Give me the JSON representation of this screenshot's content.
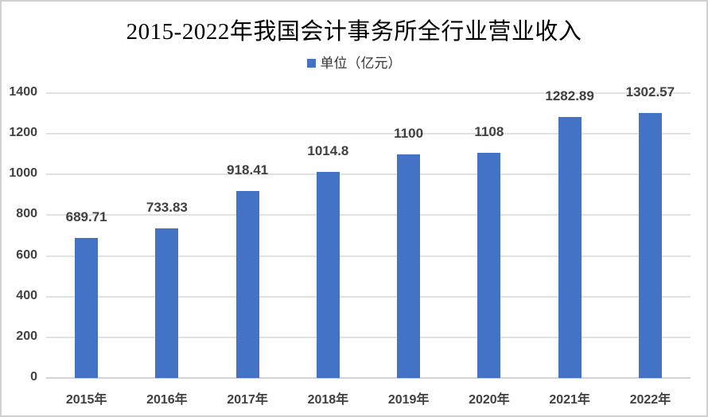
{
  "chart_data": {
    "type": "bar",
    "title": "2015-2022年我国会计事务所全行业营业收入",
    "legend": [
      {
        "name": "单位（亿元）",
        "color": "#4472c4"
      }
    ],
    "legend_position": "top",
    "categories": [
      "2015年",
      "2016年",
      "2017年",
      "2018年",
      "2019年",
      "2020年",
      "2021年",
      "2022年"
    ],
    "series": [
      {
        "name": "单位（亿元）",
        "values": [
          689.71,
          733.83,
          918.41,
          1014.8,
          1100,
          1108,
          1282.89,
          1302.57
        ]
      }
    ],
    "data_labels": [
      "689.71",
      "733.83",
      "918.41",
      "1014.8",
      "1100",
      "1108",
      "1282.89",
      "1302.57"
    ],
    "xlabel": "",
    "ylabel": "",
    "ylim": [
      0,
      1400
    ],
    "yticks": [
      "0",
      "200",
      "400",
      "600",
      "800",
      "1000",
      "1200",
      "1400"
    ],
    "grid": true,
    "bar_color": "#4472c4"
  }
}
